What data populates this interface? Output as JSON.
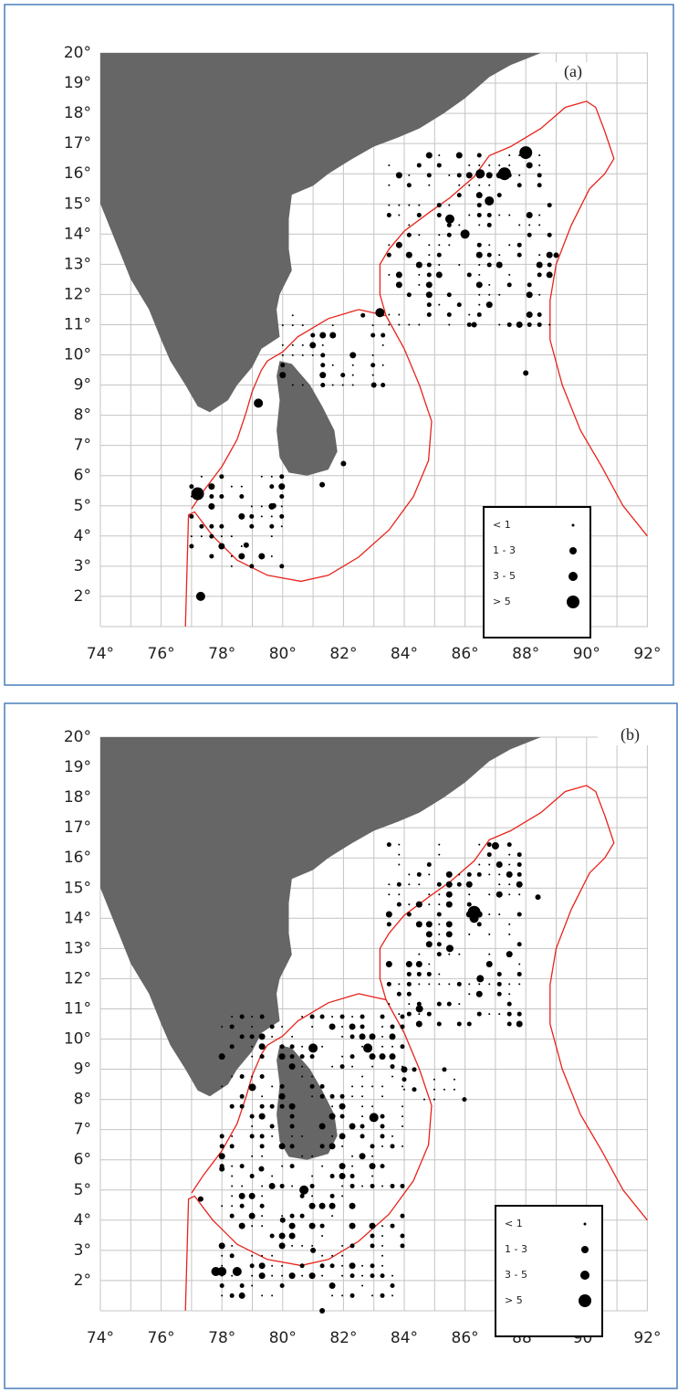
{
  "panels": [
    {
      "label": "(a)",
      "x_axis": [
        "74°",
        "76°",
        "78°",
        "80°",
        "82°",
        "84°",
        "86°",
        "88°",
        "90°",
        "92°"
      ],
      "y_axis": [
        "20°",
        "19°",
        "18°",
        "17°",
        "16°",
        "15°",
        "14°",
        "13°",
        "12°",
        "11°",
        "10°",
        "9°",
        "8°",
        "7°",
        "6°",
        "5°",
        "4°",
        "3°",
        "2°"
      ],
      "legend": [
        "< 1",
        "1 - 3",
        "3 - 5",
        "> 5"
      ]
    },
    {
      "label": "(b)",
      "x_axis": [
        "74°",
        "76°",
        "78°",
        "80°",
        "82°",
        "84°",
        "86°",
        "88°",
        "90°",
        "92°"
      ],
      "y_axis": [
        "20°",
        "19°",
        "18°",
        "17°",
        "16°",
        "15°",
        "14°",
        "13°",
        "12°",
        "11°",
        "10°",
        "9°",
        "8°",
        "7°",
        "6°",
        "5°",
        "4°",
        "3°",
        "2°"
      ],
      "legend": [
        "< 1",
        "1 - 3",
        "3 - 5",
        "> 5"
      ]
    }
  ]
}
